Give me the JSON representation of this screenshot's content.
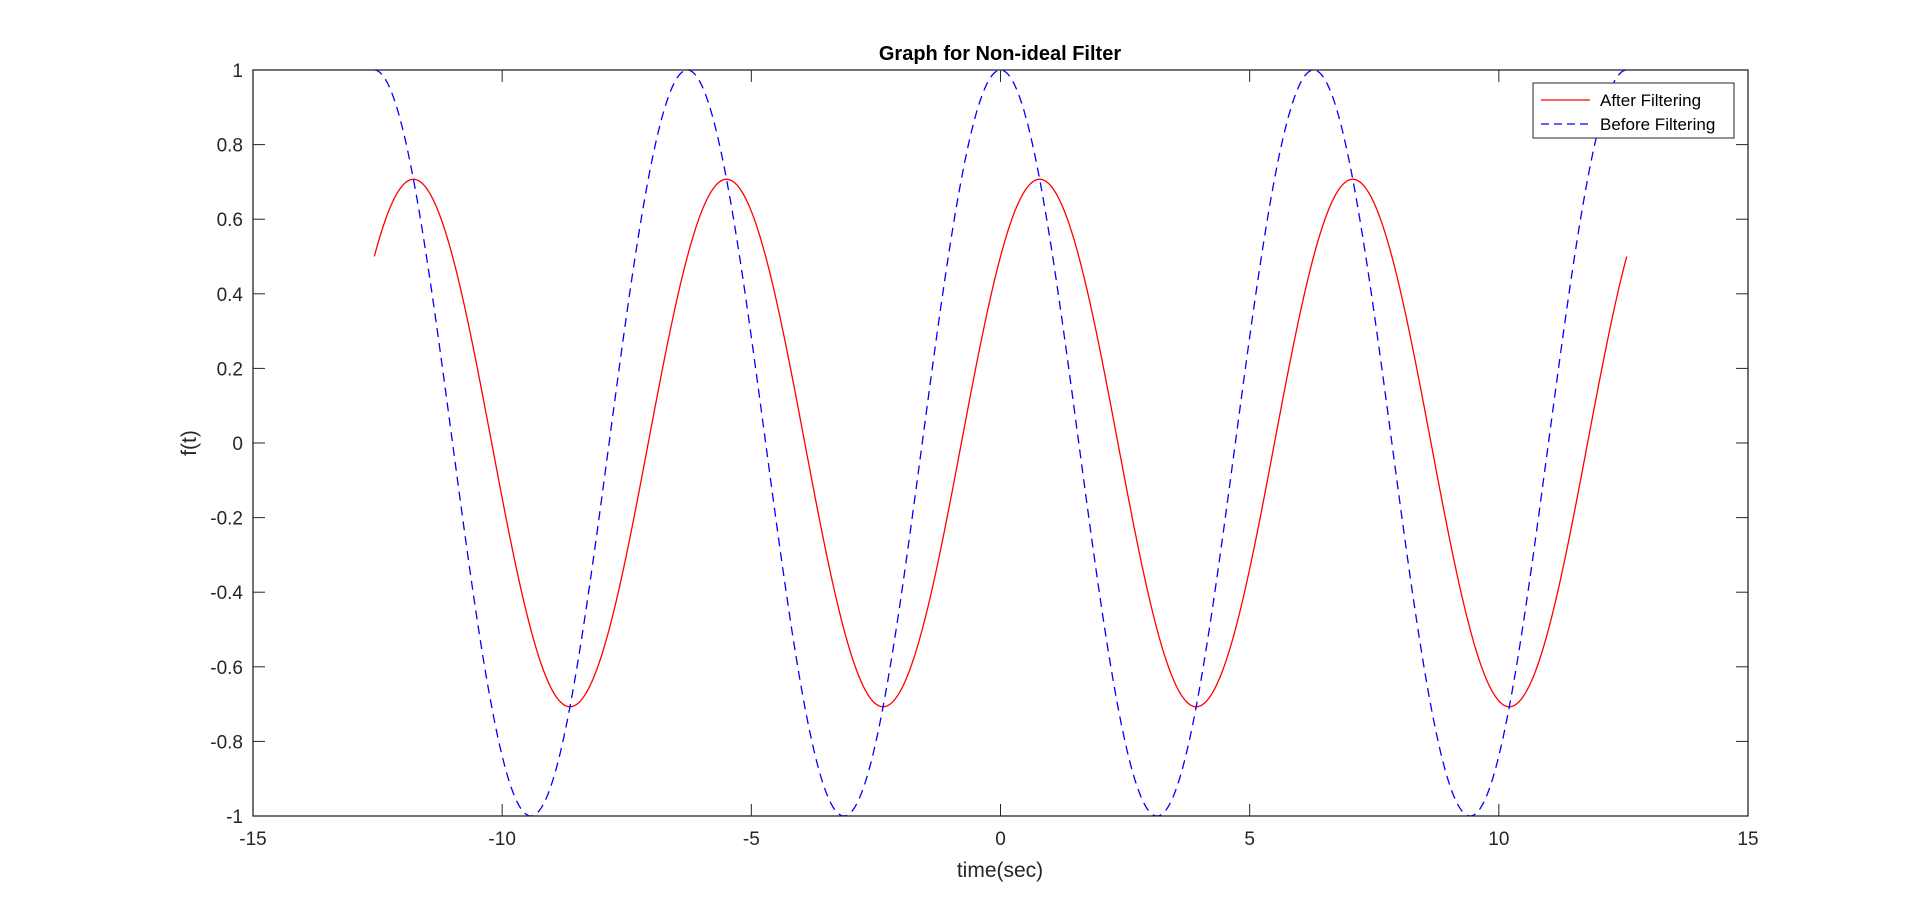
{
  "chart_data": {
    "type": "line",
    "title": "Graph for Non-ideal Filter",
    "xlabel": "time(sec)",
    "ylabel": "f(t)",
    "xlim": [
      -15,
      15
    ],
    "ylim": [
      -1,
      1
    ],
    "xticks": [
      -15,
      -10,
      -5,
      0,
      5,
      10,
      15
    ],
    "yticks": [
      -1,
      -0.8,
      -0.6,
      -0.4,
      -0.2,
      0,
      0.2,
      0.4,
      0.6,
      0.8,
      1
    ],
    "xtick_labels": [
      "-15",
      "-10",
      "-5",
      "0",
      "5",
      "10",
      "15"
    ],
    "ytick_labels": [
      "-1",
      "-0.8",
      "-0.6",
      "-0.4",
      "-0.2",
      "0",
      "0.2",
      "0.4",
      "0.6",
      "0.8",
      "1"
    ],
    "grid": false,
    "legend_position": "top-right",
    "series": [
      {
        "name": "After Filtering",
        "color": "#ff0000",
        "line_style": "solid",
        "x_range": [
          -12.566,
          12.566
        ],
        "function": "0.7071*cos(t - 0.7854)",
        "sample_points": [
          {
            "x": -12.566,
            "y": 0.5
          },
          {
            "x": -11.78,
            "y": 0.707
          },
          {
            "x": -8.64,
            "y": -0.707
          },
          {
            "x": -5.5,
            "y": 0.707
          },
          {
            "x": -2.36,
            "y": -0.707
          },
          {
            "x": 0.785,
            "y": 0.707
          },
          {
            "x": 3.93,
            "y": -0.707
          },
          {
            "x": 7.07,
            "y": 0.707
          },
          {
            "x": 10.21,
            "y": -0.707
          },
          {
            "x": 12.566,
            "y": 0.5
          }
        ]
      },
      {
        "name": "Before Filtering",
        "color": "#0000ff",
        "line_style": "dashed",
        "x_range": [
          -12.566,
          12.566
        ],
        "function": "cos(t)",
        "sample_points": [
          {
            "x": -12.566,
            "y": 1
          },
          {
            "x": -9.42,
            "y": -1
          },
          {
            "x": -6.28,
            "y": 1
          },
          {
            "x": -3.14,
            "y": -1
          },
          {
            "x": 0,
            "y": 1
          },
          {
            "x": 3.14,
            "y": -1
          },
          {
            "x": 6.28,
            "y": 1
          },
          {
            "x": 9.42,
            "y": -1
          },
          {
            "x": 12.566,
            "y": 1
          }
        ]
      }
    ]
  }
}
